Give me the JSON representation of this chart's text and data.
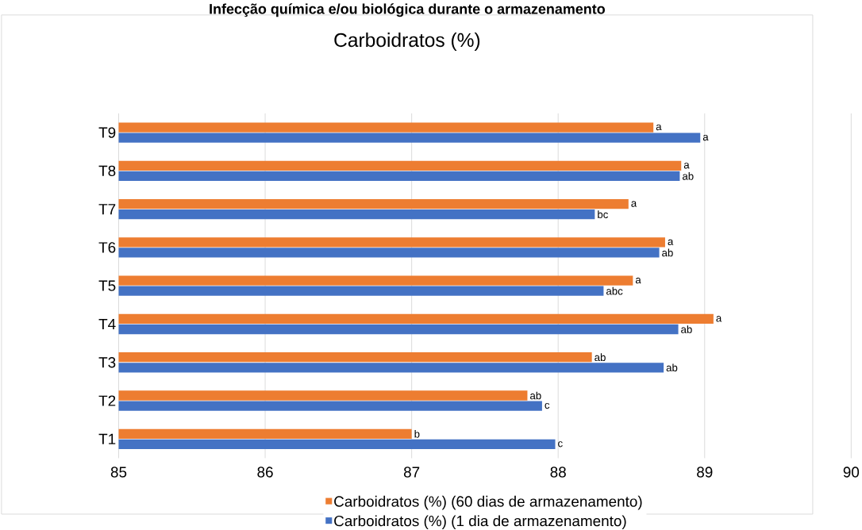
{
  "chart_data": {
    "type": "bar",
    "orientation": "horizontal",
    "title": "Infecção química e/ou biológica durante o armazenamento",
    "subtitle": "Carboidratos (%)",
    "categories": [
      "T9",
      "T8",
      "T7",
      "T6",
      "T5",
      "T4",
      "T3",
      "T2",
      "T1"
    ],
    "series": [
      {
        "name": "Carboidratos (%) (60 dias de armazenamento)",
        "color": "#ed7d31",
        "values": [
          88.65,
          88.84,
          88.48,
          88.73,
          88.51,
          89.06,
          88.23,
          87.79,
          87.0
        ],
        "value_labels": [
          "a",
          "a",
          "a",
          "a",
          "a",
          "a",
          "ab",
          "ab",
          "b"
        ]
      },
      {
        "name": "Carboidratos (%) (1 dia de armazenamento)",
        "color": "#4472c4",
        "values": [
          88.97,
          88.83,
          88.25,
          88.69,
          88.31,
          88.82,
          88.72,
          87.89,
          87.98
        ],
        "value_labels": [
          "a",
          "ab",
          "bc",
          "ab",
          "abc",
          "ab",
          "ab",
          "c",
          "c"
        ]
      }
    ],
    "xlim": [
      85,
      90
    ],
    "xticks": [
      85,
      86,
      87,
      88,
      89,
      90
    ],
    "grid": "x",
    "legend": "bottom"
  }
}
